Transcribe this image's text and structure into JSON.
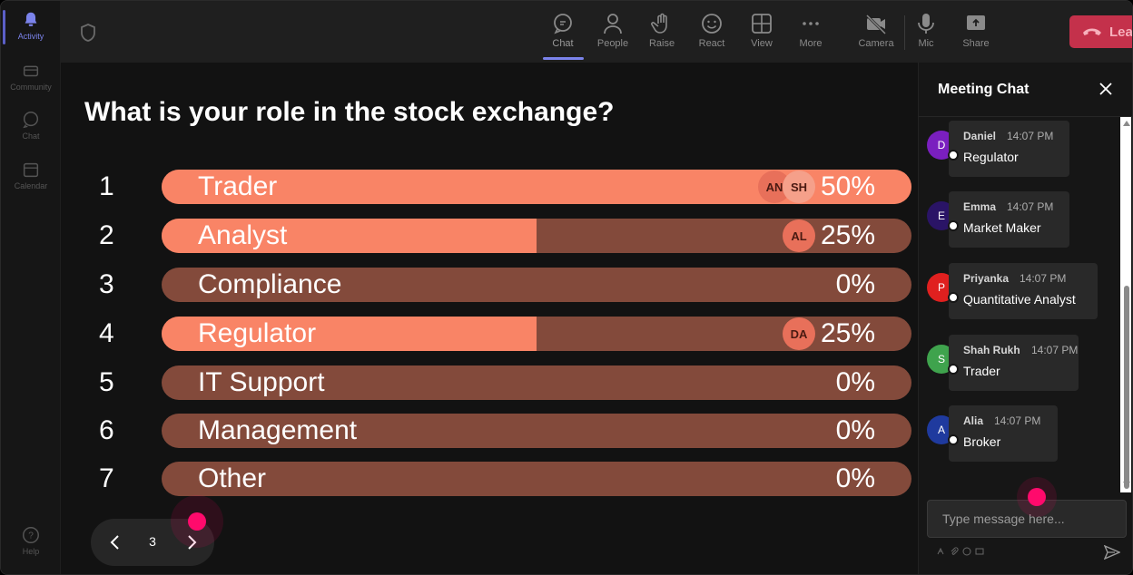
{
  "rail": {
    "items": [
      {
        "label": "Activity",
        "icon": "bell-icon"
      },
      {
        "label": "Community",
        "icon": "community-icon"
      },
      {
        "label": "Chat",
        "icon": "chat-icon"
      },
      {
        "label": "Calendar",
        "icon": "calendar-icon"
      }
    ],
    "help_label": "Help"
  },
  "toolbar": {
    "buttons": [
      {
        "label": "Chat",
        "icon": "chat-icon"
      },
      {
        "label": "People",
        "icon": "people-icon"
      },
      {
        "label": "Raise",
        "icon": "raise-hand-icon"
      },
      {
        "label": "React",
        "icon": "smiley-icon"
      },
      {
        "label": "View",
        "icon": "grid-icon"
      },
      {
        "label": "More",
        "icon": "more-icon"
      },
      {
        "label": "Camera",
        "icon": "camera-off-icon"
      },
      {
        "label": "Mic",
        "icon": "mic-icon"
      },
      {
        "label": "Share",
        "icon": "share-icon"
      }
    ],
    "leave_label": "Leave"
  },
  "poll": {
    "question": "What is your role in the stock exchange?",
    "options": [
      {
        "num": "1",
        "label": "Trader",
        "percent": "50%",
        "fill": 1.0,
        "avatars": [
          "AN",
          "SH"
        ]
      },
      {
        "num": "2",
        "label": "Analyst",
        "percent": "25%",
        "fill": 0.5,
        "avatars": [
          "AL"
        ]
      },
      {
        "num": "3",
        "label": "Compliance",
        "percent": "0%",
        "fill": 0,
        "avatars": []
      },
      {
        "num": "4",
        "label": "Regulator",
        "percent": "25%",
        "fill": 0.5,
        "avatars": [
          "DA"
        ]
      },
      {
        "num": "5",
        "label": "IT Support",
        "percent": "0%",
        "fill": 0,
        "avatars": []
      },
      {
        "num": "6",
        "label": "Management",
        "percent": "0%",
        "fill": 0,
        "avatars": []
      },
      {
        "num": "7",
        "label": "Other",
        "percent": "0%",
        "fill": 0,
        "avatars": []
      }
    ],
    "page": "3"
  },
  "chat": {
    "title": "Meeting Chat",
    "messages": [
      {
        "initial": "D",
        "name": "Daniel",
        "time": "14:07 PM",
        "text": "Regulator",
        "color": "#7a1fbf"
      },
      {
        "initial": "E",
        "name": "Emma",
        "time": "14:07 PM",
        "text": "Market Maker",
        "color": "#2a1466"
      },
      {
        "initial": "P",
        "name": "Priyanka",
        "time": "14:07 PM",
        "text": "Quantitative Analyst",
        "color": "#e0201f"
      },
      {
        "initial": "S",
        "name": "Shah Rukh",
        "time": "14:07 PM",
        "text": "Trader",
        "color": "#3fa34d"
      },
      {
        "initial": "A",
        "name": "Alia",
        "time": "14:07 PM",
        "text": "Broker",
        "color": "#1f3a9e"
      }
    ],
    "placeholder": "Type message here..."
  },
  "colors": {
    "bar_fill": "#f98466",
    "bar_track": "#834a3b",
    "leave": "#c4314b",
    "accent": "#7b83eb",
    "pointer": "#ff0a6c"
  }
}
